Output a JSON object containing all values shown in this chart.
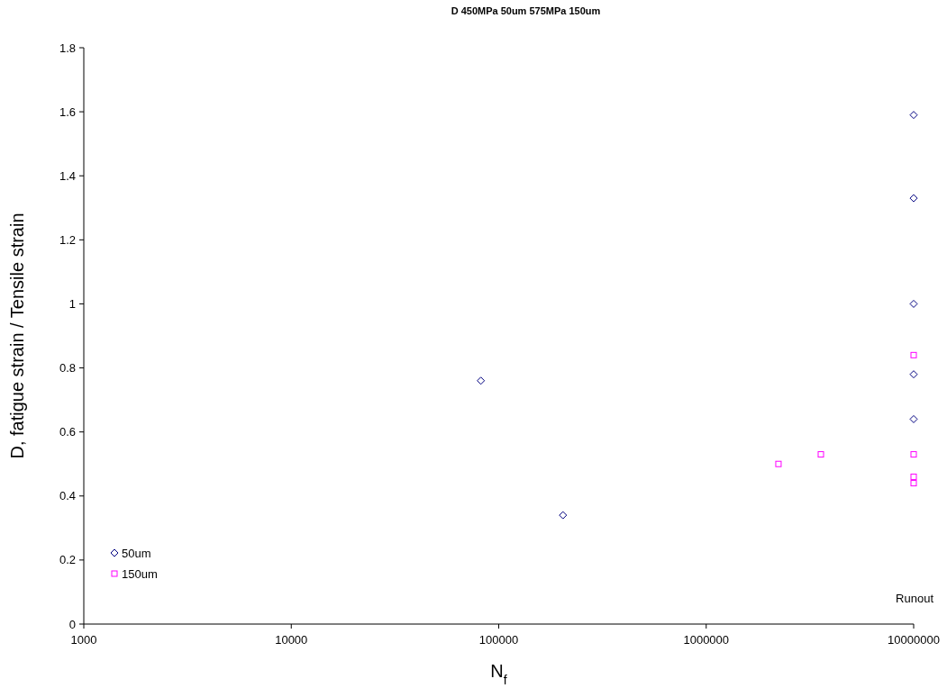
{
  "chart_data": {
    "type": "scatter",
    "title": "D 450MPa 50um 575MPa 150um",
    "xlabel": "N$_{f}$",
    "ylabel": "D, fatigue strain / Tensile strain",
    "log": "x",
    "xlim": [
      1000,
      10000000
    ],
    "xticks": [
      1000,
      10000,
      100000,
      1000000,
      10000000
    ],
    "ylim": [
      0,
      1.8
    ],
    "yticks": [
      0,
      {
        "value": 0.2,
        "label": "0.2"
      },
      {
        "value": 0.4,
        "label": "0.4"
      },
      {
        "value": 0.6,
        "label": "0.6"
      },
      {
        "value": 0.8,
        "label": "0.8"
      },
      1,
      {
        "value": 1.2,
        "label": "1.2"
      },
      {
        "value": 1.4,
        "label": "1.4"
      },
      {
        "value": 1.6,
        "label": "1.6"
      },
      {
        "value": 1.8,
        "label": "1.8"
      }
    ],
    "grid": false,
    "legend": "bottom left",
    "annotations": [
      "Runout"
    ],
    "series": [
      {
        "name": "50um",
        "color": "#000080",
        "marker": "diamond",
        "x": [
          82000,
          204000,
          10000000,
          10000000,
          10000000,
          10000000,
          10000000
        ],
        "values": [
          0.76,
          0.34,
          1.59,
          1.33,
          1.0,
          0.78,
          0.64
        ]
      },
      {
        "name": "150um",
        "color": "#ff00ff",
        "marker": "square",
        "x": [
          2230000,
          3570000,
          10000000,
          10000000,
          10000000,
          10000000
        ],
        "values": [
          0.5,
          0.53,
          0.84,
          0.53,
          0.46,
          0.44
        ]
      }
    ]
  }
}
